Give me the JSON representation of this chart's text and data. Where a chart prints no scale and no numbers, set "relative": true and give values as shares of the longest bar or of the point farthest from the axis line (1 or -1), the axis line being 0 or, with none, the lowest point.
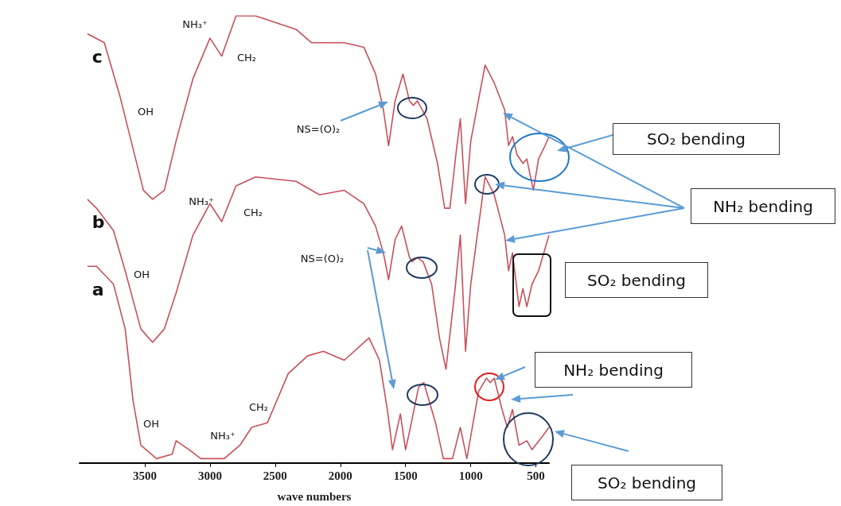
{
  "chart_data": {
    "type": "line",
    "relative": true,
    "xlabel": "wave numbers",
    "xlim": [
      4000,
      400
    ],
    "xticks": [
      3500,
      3000,
      2500,
      2000,
      1500,
      1000,
      500
    ],
    "legend": false,
    "grid": false,
    "series": [
      {
        "name": "c",
        "color": "#c8505a",
        "x": [
          3940,
          3810,
          3690,
          3570,
          3510,
          3440,
          3350,
          3260,
          3130,
          3000,
          2910,
          2800,
          2650,
          2340,
          2220,
          2100,
          1970,
          1820,
          1730,
          1670,
          1630,
          1580,
          1520,
          1470,
          1440,
          1410,
          1335,
          1255,
          1200,
          1160,
          1110,
          1080,
          1040,
          1000,
          890,
          820,
          740,
          710,
          680,
          645,
          600,
          570,
          520,
          480,
          430,
          400
        ],
        "values": [
          0.96,
          0.94,
          0.82,
          0.68,
          0.61,
          0.59,
          0.61,
          0.72,
          0.86,
          0.95,
          0.91,
          1.0,
          1.0,
          0.97,
          0.94,
          0.94,
          0.94,
          0.93,
          0.87,
          0.79,
          0.71,
          0.81,
          0.87,
          0.81,
          0.8,
          0.81,
          0.77,
          0.67,
          0.57,
          0.57,
          0.7,
          0.77,
          0.58,
          0.72,
          0.89,
          0.85,
          0.79,
          0.71,
          0.73,
          0.69,
          0.67,
          0.68,
          0.61,
          0.68,
          0.71,
          0.73
        ]
      },
      {
        "name": "b",
        "color": "#c8505a",
        "x": [
          3940,
          3870,
          3740,
          3650,
          3530,
          3440,
          3350,
          3260,
          3130,
          3000,
          2910,
          2800,
          2650,
          2340,
          2160,
          1970,
          1820,
          1730,
          1670,
          1630,
          1580,
          1530,
          1470,
          1450,
          1410,
          1365,
          1300,
          1240,
          1190,
          1120,
          1080,
          1040,
          1000,
          890,
          820,
          740,
          710,
          680,
          630,
          600,
          570,
          530,
          480,
          400
        ],
        "values": [
          0.59,
          0.57,
          0.52,
          0.43,
          0.3,
          0.27,
          0.3,
          0.38,
          0.51,
          0.58,
          0.54,
          0.62,
          0.64,
          0.63,
          0.6,
          0.61,
          0.58,
          0.53,
          0.47,
          0.41,
          0.5,
          0.53,
          0.46,
          0.45,
          0.46,
          0.45,
          0.4,
          0.28,
          0.21,
          0.39,
          0.51,
          0.25,
          0.4,
          0.64,
          0.6,
          0.51,
          0.43,
          0.47,
          0.35,
          0.39,
          0.35,
          0.4,
          0.43,
          0.51
        ]
      },
      {
        "name": "a",
        "color": "#c8505a",
        "x": [
          3940,
          3870,
          3740,
          3650,
          3590,
          3530,
          3410,
          3290,
          3260,
          3160,
          3070,
          2890,
          2770,
          2680,
          2560,
          2400,
          2250,
          2130,
          1970,
          1780,
          1700,
          1640,
          1600,
          1540,
          1500,
          1470,
          1400,
          1360,
          1270,
          1210,
          1140,
          1080,
          1030,
          940,
          880,
          850,
          820,
          760,
          720,
          680,
          630,
          570,
          530,
          450,
          400
        ],
        "values": [
          0.44,
          0.44,
          0.4,
          0.3,
          0.14,
          0.04,
          0.01,
          0.02,
          0.05,
          0.03,
          0.01,
          0.01,
          0.04,
          0.08,
          0.09,
          0.2,
          0.24,
          0.25,
          0.23,
          0.28,
          0.23,
          0.12,
          0.03,
          0.11,
          0.03,
          0.07,
          0.17,
          0.18,
          0.09,
          0.01,
          0.01,
          0.08,
          0.01,
          0.16,
          0.19,
          0.18,
          0.19,
          0.12,
          0.08,
          0.12,
          0.04,
          0.05,
          0.03,
          0.06,
          0.08
        ]
      }
    ],
    "annotations": [
      "OH",
      "NH₃⁺",
      "CH₂",
      "NS=(O)₂",
      "SO₂ bending",
      "NH₂ bending",
      "OH",
      "NH₃⁺",
      "CH₂",
      "NS=(O)₂",
      "SO₂ bending",
      "OH",
      "NH₃⁺",
      "CH₂",
      "NH₂ bending",
      "SO₂ bending"
    ]
  }
}
